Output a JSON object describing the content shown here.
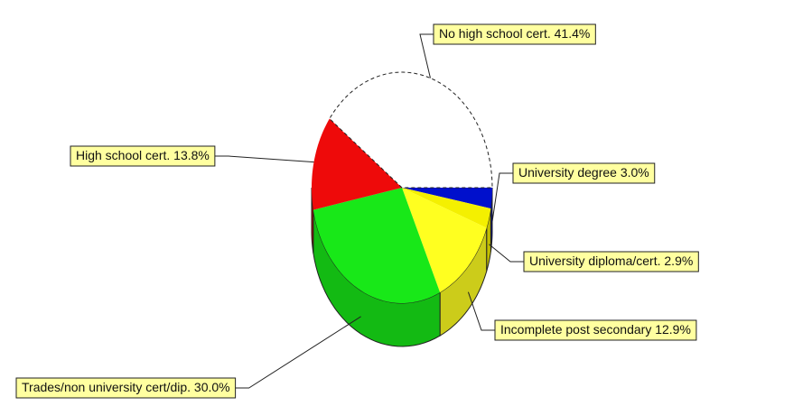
{
  "chart_data": {
    "type": "pie",
    "categories": [
      "University degree",
      "University diploma/cert.",
      "Incomplete post secondary",
      "Trades/non university cert/dip.",
      "High school cert.",
      "No high school cert."
    ],
    "values": [
      3.0,
      2.9,
      12.9,
      30.0,
      13.8,
      41.4
    ],
    "value_labels": [
      "3.0%",
      "2.9%",
      "12.9%",
      "30.0%",
      "13.8%",
      "41.4%"
    ],
    "colors": [
      "#0010cc",
      "#f4f000",
      "#ffff20",
      "#18e818",
      "#ee0a0a",
      "#ffffff"
    ]
  }
}
